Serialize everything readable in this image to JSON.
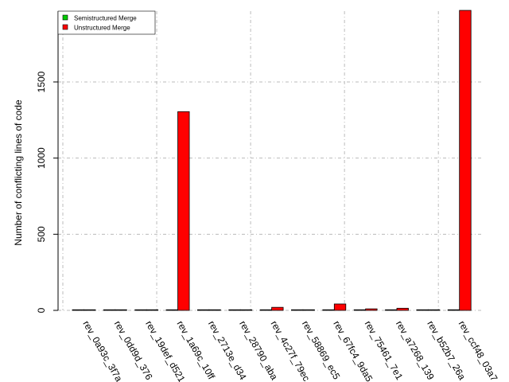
{
  "chart_data": {
    "type": "bar",
    "title": "",
    "xlabel": "",
    "ylabel": "Number of conflicting lines of code",
    "ylim": [
      0,
      1965
    ],
    "yticks": [
      0,
      500,
      1000,
      1500
    ],
    "grid": true,
    "legend_position": "top-left",
    "categories": [
      "rev_0a93c_3f7a",
      "rev_0dd9d_376",
      "rev_19def_d521",
      "rev_1a69c_10ff",
      "rev_2713e_d34",
      "rev_28790_aba",
      "rev_4c27f_79ec",
      "rev_58869_ec5",
      "rev_67fc4_9da5",
      "rev_75461_7e1",
      "rev_a7268_139",
      "rev_b52b7_26a",
      "rev_ccf48_03a7"
    ],
    "series": [
      {
        "name": "Semistructured Merge",
        "color": "#00cc00",
        "values": [
          0,
          0,
          0,
          0,
          0,
          0,
          0,
          0,
          0,
          0,
          0,
          0,
          0
        ]
      },
      {
        "name": "Unstructured Merge",
        "color": "#ff0000",
        "values": [
          2,
          3,
          2,
          1305,
          3,
          3,
          20,
          3,
          42,
          10,
          14,
          3,
          1970
        ]
      }
    ]
  }
}
